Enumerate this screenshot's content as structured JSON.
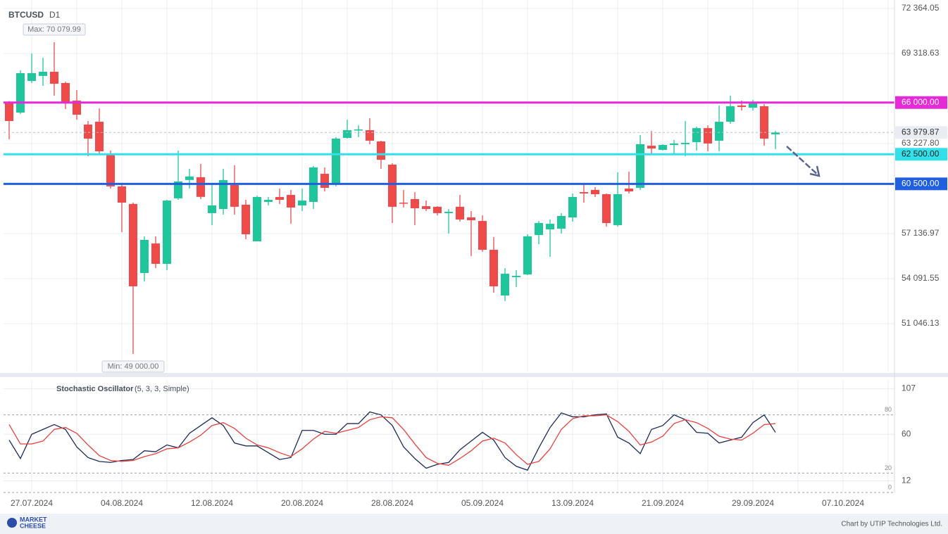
{
  "chart_data": {
    "type": "candlestick",
    "title": "BTCUSD",
    "timeframe": "D1",
    "categories": [
      null,
      null,
      "27.07.2024",
      null,
      null,
      null,
      null,
      null,
      null,
      null,
      "04.08.2024",
      null,
      null,
      null,
      null,
      null,
      null,
      null,
      "12.08.2024",
      null,
      null,
      null,
      null,
      null,
      null,
      null,
      "20.08.2024",
      null,
      null,
      null,
      null,
      null,
      null,
      null,
      "28.08.2024",
      null,
      null,
      null,
      null,
      null,
      null,
      null,
      "05.09.2024",
      null,
      null,
      null,
      null,
      null,
      null,
      null,
      "13.09.2024",
      null,
      null,
      null,
      null,
      null,
      null,
      null,
      "21.09.2024",
      null,
      null,
      null,
      null,
      null,
      null,
      null,
      "29.09.2024",
      null,
      null,
      null,
      null,
      null,
      null,
      null,
      "07.10.2024",
      null,
      null,
      null,
      null
    ],
    "open": [
      65990,
      65320,
      67460,
      67800,
      68080,
      67320,
      66130,
      64510,
      64700,
      62560,
      60330,
      59140,
      54470,
      56470,
      55090,
      59520,
      60760,
      60950,
      58520,
      58800,
      60420,
      59090,
      56610,
      59280,
      59610,
      59750,
      59040,
      59280,
      61180,
      60470,
      63610,
      64130,
      64130,
      63370,
      61800,
      59230,
      59470,
      58990,
      58950,
      58520,
      58950,
      58230,
      57990,
      56040,
      52950,
      54190,
      54370,
      57040,
      57420,
      57470,
      58230,
      59940,
      60090,
      59800,
      57710,
      60180,
      60230,
      63080,
      62800,
      63130,
      63180,
      63320,
      64270,
      63420,
      64700,
      65800,
      65650,
      65750,
      63850,
      null,
      null,
      null,
      null,
      null,
      null,
      null,
      null,
      null,
      null
    ],
    "high": [
      66100,
      68177,
      69320,
      69030,
      70079.99,
      67410,
      66840,
      64750,
      65600,
      62750,
      60470,
      59230,
      56950,
      56950,
      59420,
      62750,
      61520,
      61850,
      60520,
      61520,
      61760,
      59420,
      59700,
      59610,
      60180,
      60090,
      60180,
      61710,
      61610,
      63660,
      64840,
      64460,
      64940,
      63420,
      61900,
      60090,
      59940,
      59370,
      58990,
      58800,
      59750,
      58660,
      58370,
      56900,
      54800,
      54660,
      57090,
      57990,
      58090,
      58520,
      59850,
      60470,
      60280,
      59850,
      61280,
      61330,
      63800,
      64080,
      63180,
      63470,
      64750,
      64370,
      64460,
      65800,
      66460,
      66130,
      66180,
      65890,
      64080,
      null,
      null,
      null,
      null,
      null,
      null,
      null,
      null,
      null,
      null
    ],
    "low": [
      63513,
      65226,
      67320,
      67130,
      66460,
      65560,
      64840,
      62370,
      62560,
      60180,
      57230,
      49000,
      53900,
      54800,
      54660,
      59420,
      60180,
      59470,
      57710,
      58420,
      58420,
      56760,
      56610,
      59040,
      59140,
      57800,
      58660,
      58800,
      59990,
      60330,
      63560,
      63660,
      63180,
      61520,
      57850,
      58900,
      57710,
      58660,
      58370,
      57140,
      57950,
      55610,
      55900,
      53140,
      52570,
      53520,
      54330,
      56420,
      55570,
      57140,
      57950,
      59230,
      59610,
      57610,
      57610,
      59850,
      60090,
      62460,
      62750,
      62560,
      62370,
      62750,
      62700,
      62700,
      64560,
      65460,
      65460,
      63080,
      62850,
      null,
      null,
      null,
      null,
      null,
      null,
      null,
      null,
      null,
      null
    ],
    "close": [
      64750,
      67986,
      67990,
      68080,
      67270,
      66030,
      65180,
      63560,
      62700,
      60330,
      59230,
      53570,
      56710,
      55090,
      59370,
      60660,
      61000,
      59620,
      59040,
      60760,
      58950,
      57090,
      59610,
      59420,
      59420,
      58900,
      59370,
      61610,
      60230,
      63560,
      64130,
      64180,
      63420,
      62130,
      58950,
      59180,
      58850,
      58800,
      58520,
      58610,
      58090,
      58040,
      56040,
      53570,
      54420,
      54280,
      56950,
      57850,
      57800,
      58330,
      59610,
      59850,
      59800,
      57850,
      59800,
      59990,
      63180,
      62890,
      63130,
      63230,
      63270,
      64270,
      63230,
      64700,
      65750,
      65700,
      65940,
      63560,
      63979.87,
      null,
      null,
      null,
      null,
      null,
      null,
      null,
      null,
      null,
      null
    ],
    "up_color": "#1fc59b",
    "down_color": "#ef4a4a",
    "ylim": [
      47858,
      72935
    ],
    "yticks": [
      {
        "value": 72364.05,
        "label": "72 364.05"
      },
      {
        "value": 69318.63,
        "label": "69 318.63"
      },
      {
        "value": 63227.8,
        "label": "63 227.80"
      },
      {
        "value": 57136.97,
        "label": "57 136.97"
      },
      {
        "value": 54091.55,
        "label": "54 091.55"
      },
      {
        "value": 51046.13,
        "label": "51 046.13"
      }
    ],
    "grid": true,
    "lines": [
      {
        "value": 66000,
        "label": "66 000.00",
        "color": "#e62ad8"
      },
      {
        "value": 62500,
        "label": "62 500.00",
        "color": "#33e0ea"
      },
      {
        "value": 60500,
        "label": "60 500.00",
        "color": "#1f5fe0"
      }
    ],
    "last_price": {
      "value": 63979.87,
      "label": "63 979.87"
    },
    "max": {
      "value": 70079.99,
      "label": "Max: 70 079.99"
    },
    "min": {
      "value": 49000,
      "label": "Min: 49 000.00"
    },
    "indicator": {
      "type": "line",
      "name": "Stochastic Oscillator",
      "params": "(5, 3, 3, Simple)",
      "ylim": [
        0,
        116
      ],
      "yticks": [
        107,
        60,
        12
      ],
      "levels": [
        80,
        20,
        0
      ],
      "series": [
        {
          "color": "#1c2a5a",
          "values": [
            54,
            35,
            60,
            65,
            70,
            65,
            47,
            36,
            32,
            31,
            33,
            34,
            43,
            42,
            49,
            46,
            61,
            69,
            77,
            69,
            51,
            48,
            48,
            41,
            34,
            36,
            64,
            64,
            60,
            60,
            71,
            71,
            83,
            80,
            69,
            47,
            35,
            25,
            29,
            31,
            44,
            53,
            62,
            54,
            36,
            27,
            23,
            46,
            67,
            82,
            78,
            78,
            80,
            81,
            57,
            51,
            40,
            65,
            69,
            80,
            75,
            62,
            61,
            51,
            54,
            57,
            72,
            80,
            62,
            null,
            null,
            null,
            null,
            null,
            null,
            null,
            null,
            null,
            null
          ]
        },
        {
          "color": "#e8413c",
          "values": [
            70,
            50,
            50,
            53,
            65,
            67,
            61,
            49,
            38,
            33,
            32,
            33,
            37,
            40,
            45,
            46,
            52,
            59,
            69,
            72,
            66,
            56,
            49,
            46,
            41,
            37,
            45,
            55,
            63,
            61,
            64,
            67,
            75,
            78,
            77,
            65,
            50,
            36,
            30,
            28,
            35,
            43,
            53,
            56,
            51,
            39,
            29,
            32,
            45,
            65,
            76,
            79,
            79,
            80,
            73,
            63,
            49,
            52,
            58,
            71,
            75,
            72,
            66,
            58,
            55,
            54,
            61,
            70,
            71,
            null,
            null,
            null,
            null,
            null,
            null,
            null,
            null,
            null,
            null
          ]
        }
      ]
    }
  },
  "footer": {
    "logo_top": "MARKET",
    "logo_bottom": "CHEESE",
    "credit": "Chart by UTIP Technologies Ltd."
  }
}
